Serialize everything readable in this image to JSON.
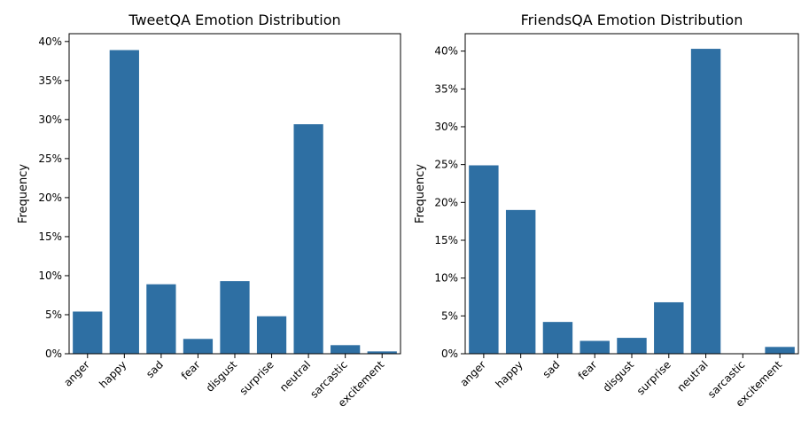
{
  "chart_data": [
    {
      "type": "bar",
      "title": "TweetQA Emotion Distribution",
      "xlabel": "",
      "ylabel": "Frequency",
      "categories": [
        "anger",
        "happy",
        "sad",
        "fear",
        "disgust",
        "surprise",
        "neutral",
        "sarcastic",
        "excitement"
      ],
      "values": [
        0.054,
        0.389,
        0.089,
        0.019,
        0.093,
        0.048,
        0.294,
        0.011,
        0.003
      ],
      "yticks": [
        0,
        0.05,
        0.1,
        0.15,
        0.2,
        0.25,
        0.3,
        0.35,
        0.4
      ],
      "yticklabels": [
        "0%",
        "5%",
        "10%",
        "15%",
        "20%",
        "25%",
        "30%",
        "35%",
        "40%"
      ],
      "ylim": [
        0,
        0.41
      ],
      "bar_color": "#2e6fa3"
    },
    {
      "type": "bar",
      "title": "FriendsQA Emotion Distribution",
      "xlabel": "",
      "ylabel": "Frequency",
      "categories": [
        "anger",
        "happy",
        "sad",
        "fear",
        "disgust",
        "surprise",
        "neutral",
        "sarcastic",
        "excitement"
      ],
      "values": [
        0.249,
        0.19,
        0.042,
        0.017,
        0.021,
        0.068,
        0.403,
        0.0,
        0.009
      ],
      "yticks": [
        0,
        0.05,
        0.1,
        0.15,
        0.2,
        0.25,
        0.3,
        0.35,
        0.4
      ],
      "yticklabels": [
        "0%",
        "5%",
        "10%",
        "15%",
        "20%",
        "25%",
        "30%",
        "35%",
        "40%"
      ],
      "ylim": [
        0,
        0.423
      ],
      "bar_color": "#2e6fa3"
    }
  ]
}
